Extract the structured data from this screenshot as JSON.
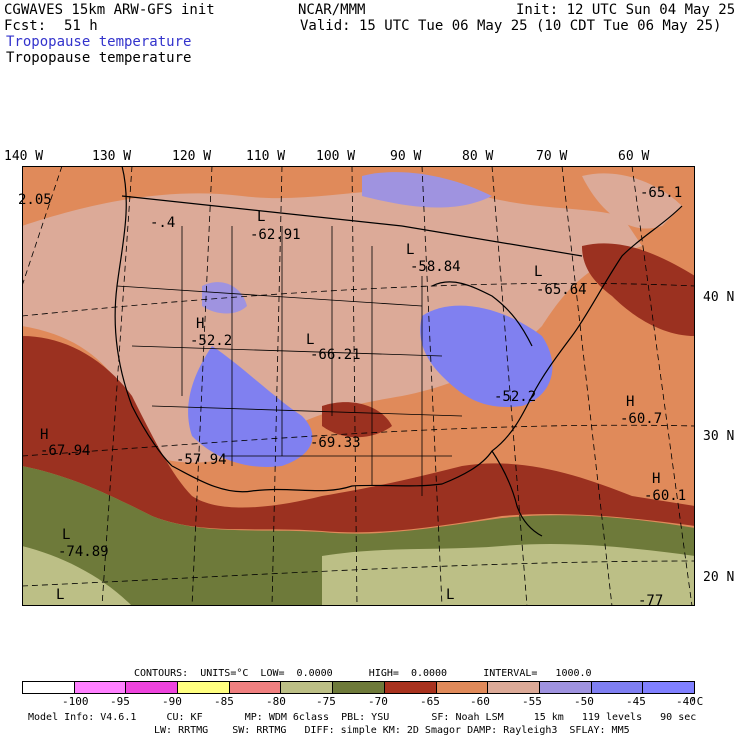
{
  "header": {
    "model": "CGWAVES 15km ARW-GFS init",
    "org": "NCAR/MMM",
    "init": "Init: 12 UTC Sun 04 May 25",
    "fcst_label": "Fcst:",
    "fcst_value": "51 h",
    "valid": "Valid: 15 UTC Tue 06 May 25 (10 CDT Tue 06 May 25)",
    "field_title": "Tropopause temperature",
    "field_subtitle": "Tropopause temperature"
  },
  "map": {
    "longitudes": [
      "140 W",
      "130 W",
      "120 W",
      "110 W",
      "100 W",
      "90 W",
      "80 W",
      "70 W",
      "60 W"
    ],
    "latitudes": [
      "40 N",
      "30 N",
      "20 N"
    ],
    "colors": {
      "lt_m70": "#9b3120",
      "m70_m65": "#a8321e",
      "m65_m60": "#e08a5a",
      "m60_m55": "#dcaa98",
      "m55_m50": "#9f93e0",
      "m50_m45": "#7f7ff2",
      "olive_dark": "#6e7a3a",
      "olive_light": "#bcbf86"
    },
    "labels": [
      {
        "id": "l1",
        "text": "2.05"
      },
      {
        "id": "l2",
        "text": "-.4"
      },
      {
        "id": "l3",
        "text": "L"
      },
      {
        "id": "l4",
        "text": "-62.91"
      },
      {
        "id": "l5",
        "text": "L"
      },
      {
        "id": "l6",
        "text": "-58.84"
      },
      {
        "id": "l7",
        "text": "L"
      },
      {
        "id": "l8",
        "text": "-65.64"
      },
      {
        "id": "l9",
        "text": "-65.1"
      },
      {
        "id": "l10",
        "text": "H"
      },
      {
        "id": "l11",
        "text": "-52.2"
      },
      {
        "id": "l12",
        "text": "L"
      },
      {
        "id": "l13",
        "text": "-66.21"
      },
      {
        "id": "l14",
        "text": "-52.2"
      },
      {
        "id": "l15",
        "text": "H"
      },
      {
        "id": "l16",
        "text": "-60.7"
      },
      {
        "id": "l17",
        "text": "H"
      },
      {
        "id": "l18",
        "text": "-67.94"
      },
      {
        "id": "l19",
        "text": "-57.94"
      },
      {
        "id": "l20",
        "text": "-69.33"
      },
      {
        "id": "l21",
        "text": "H"
      },
      {
        "id": "l22",
        "text": "-60.1"
      },
      {
        "id": "l23",
        "text": "L"
      },
      {
        "id": "l24",
        "text": "-74.89"
      },
      {
        "id": "l25",
        "text": "L"
      },
      {
        "id": "l26",
        "text": "L"
      },
      {
        "id": "l27",
        "text": "-77"
      }
    ]
  },
  "contours": {
    "line": "CONTOURS:  UNITS=°C  LOW=  0.0000      HIGH=  0.0000      INTERVAL=   1000.0"
  },
  "legend": {
    "swatches": [
      "#ffffff",
      "#ff80ff",
      "#ee44dd",
      "#ffff80",
      "#f08080",
      "#bcbf86",
      "#6e7a3a",
      "#a8321e",
      "#e08a5a",
      "#dcaa98",
      "#9f93e0",
      "#7f7ff2",
      "#8080ff"
    ],
    "ticks": [
      "-100",
      "-95",
      "-90",
      "-85",
      "-80",
      "-75",
      "-70",
      "-65",
      "-60",
      "-55",
      "-50",
      "-45",
      "-40",
      "°C"
    ]
  },
  "footer": {
    "line1": "Model Info: V4.6.1     CU: KF       MP: WDM 6class  PBL: YSU       SF: Noah LSM     15 km   119 levels   90 sec",
    "line2": "LW: RRTMG    SW: RRTMG   DIFF: simple KM: 2D Smagor DAMP: Rayleigh3  SFLAY: MM5"
  }
}
